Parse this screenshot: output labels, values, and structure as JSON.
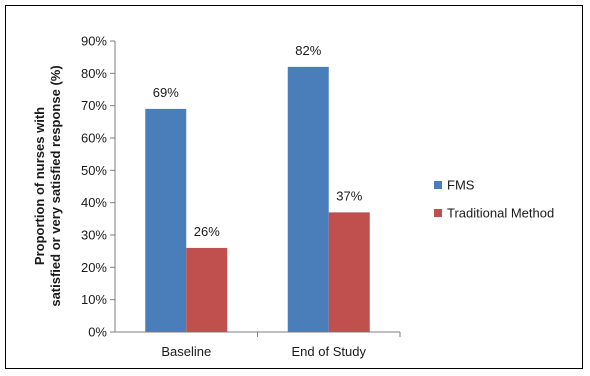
{
  "chart_data": {
    "type": "bar",
    "categories": [
      "Baseline",
      "End of Study"
    ],
    "series": [
      {
        "name": "FMS",
        "values": [
          69,
          82
        ],
        "labels": [
          "69%",
          "82%"
        ],
        "color": "#4a7ebb"
      },
      {
        "name": "Traditional Method",
        "values": [
          26,
          37
        ],
        "labels": [
          "26%",
          "37%"
        ],
        "color": "#c0504d"
      }
    ],
    "ylabel_lines": [
      "Proportion of nurses with",
      "satisfied or very satisfied response (%)"
    ],
    "ylim": [
      0,
      90
    ],
    "yticks": [
      0,
      10,
      20,
      30,
      40,
      50,
      60,
      70,
      80,
      90
    ],
    "ytick_labels": [
      "0%",
      "10%",
      "20%",
      "30%",
      "40%",
      "50%",
      "60%",
      "70%",
      "80%",
      "90%"
    ],
    "grid": false,
    "legend_position": "right"
  }
}
